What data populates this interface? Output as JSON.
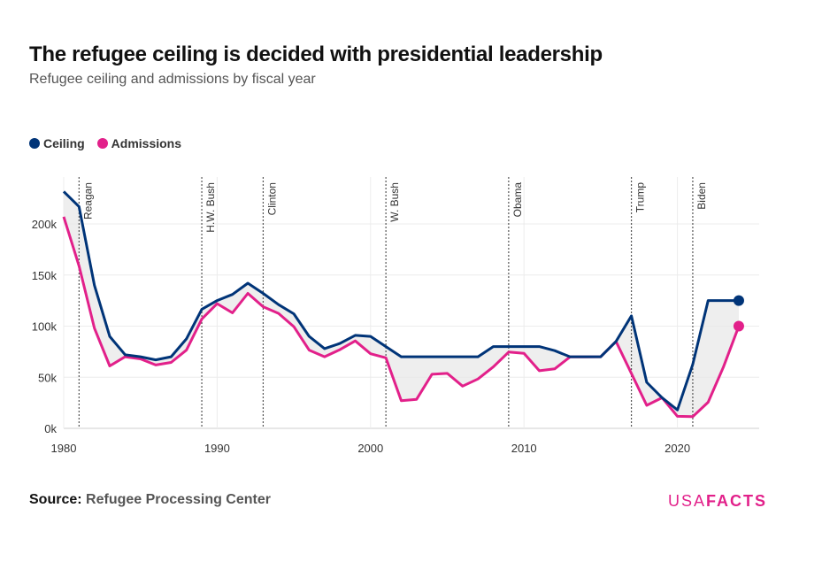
{
  "header": {
    "title": "The refugee ceiling is decided with presidential leadership",
    "subtitle": "Refugee ceiling and admissions by fiscal year"
  },
  "legend": [
    {
      "label": "Ceiling",
      "color": "#003478"
    },
    {
      "label": "Admissions",
      "color": "#e2208a"
    }
  ],
  "footer": {
    "source_label": "Source:",
    "source_value": "Refugee Processing Center",
    "brand_light": "USA",
    "brand_bold": "FACTS"
  },
  "chart_data": {
    "type": "line",
    "xlim": [
      1980,
      2025
    ],
    "ylim": [
      0,
      240000
    ],
    "x_ticks": [
      1980,
      1990,
      2000,
      2010,
      2020
    ],
    "y_ticks": [
      0,
      50000,
      100000,
      150000,
      200000
    ],
    "y_tick_labels": [
      "0k",
      "50k",
      "100k",
      "150k",
      "200k"
    ],
    "grid": true,
    "legend_position": "top-left",
    "presidents": [
      {
        "name": "Reagan",
        "year": 1981
      },
      {
        "name": "H.W. Bush",
        "year": 1989
      },
      {
        "name": "Clinton",
        "year": 1993
      },
      {
        "name": "W. Bush",
        "year": 2001
      },
      {
        "name": "Obama",
        "year": 2009
      },
      {
        "name": "Trump",
        "year": 2017
      },
      {
        "name": "Biden",
        "year": 2021
      }
    ],
    "x": [
      1980,
      1981,
      1982,
      1983,
      1984,
      1985,
      1986,
      1987,
      1988,
      1989,
      1990,
      1991,
      1992,
      1993,
      1994,
      1995,
      1996,
      1997,
      1998,
      1999,
      2000,
      2001,
      2002,
      2003,
      2004,
      2005,
      2006,
      2007,
      2008,
      2009,
      2010,
      2011,
      2012,
      2013,
      2014,
      2015,
      2016,
      2017,
      2018,
      2019,
      2020,
      2021,
      2022,
      2023,
      2024
    ],
    "series": [
      {
        "name": "Ceiling",
        "color": "#003478",
        "values": [
          231700,
          217000,
          140000,
          90000,
          72000,
          70000,
          67000,
          70000,
          87500,
          116500,
          125000,
          131000,
          142000,
          132000,
          121000,
          112000,
          90000,
          78000,
          83000,
          91000,
          90000,
          80000,
          70000,
          70000,
          70000,
          70000,
          70000,
          70000,
          80000,
          80000,
          80000,
          80000,
          76000,
          70000,
          70000,
          70000,
          85000,
          110000,
          45000,
          30000,
          18000,
          62500,
          125000,
          125000,
          125000
        ]
      },
      {
        "name": "Admissions",
        "color": "#e2208a",
        "values": [
          207000,
          159000,
          98000,
          61000,
          70000,
          68000,
          62000,
          64500,
          76500,
          107000,
          122000,
          113000,
          132000,
          119000,
          112500,
          99500,
          76500,
          70000,
          77000,
          85500,
          73000,
          69000,
          27000,
          28400,
          52900,
          53800,
          41300,
          48300,
          60100,
          74600,
          73300,
          56400,
          58200,
          69900,
          69900,
          70000,
          85000,
          53700,
          22500,
          30000,
          11800,
          11400,
          25500,
          60000,
          100000
        ]
      }
    ]
  }
}
